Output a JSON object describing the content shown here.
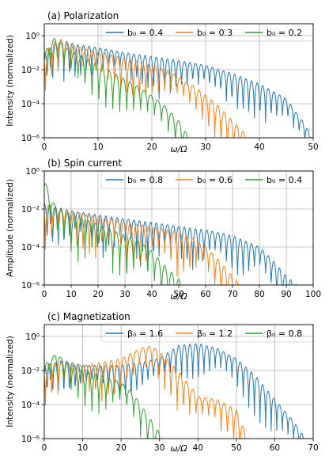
{
  "chart_data": [
    {
      "type": "line",
      "title": "(a) Polarization",
      "xlabel": "ω/Ω",
      "ylabel": "Intensity (normalized)",
      "xlim": [
        0,
        50
      ],
      "ylim": [
        1e-06,
        5
      ],
      "yscale": "log",
      "grid": true,
      "legend_position": "top-right",
      "xticks": [
        "0",
        "10",
        "20",
        "30",
        "40",
        "50"
      ],
      "yticks": [
        "10⁻⁶",
        "10⁻⁴",
        "10⁻²",
        "10⁰"
      ],
      "series": [
        {
          "name": "b₀ = 0.4",
          "color": "#1f77b4",
          "x": [
            0,
            3,
            6,
            10,
            15,
            20,
            25,
            30,
            35,
            40,
            45,
            48,
            50
          ],
          "y": [
            0.1,
            0.6,
            0.3,
            0.2,
            0.1,
            0.06,
            0.035,
            0.018,
            0.006,
            0.0015,
            0.0002,
            1e-05,
            1e-06
          ]
        },
        {
          "name": "b₀ = 0.3",
          "color": "#ff7f0e",
          "x": [
            0,
            2.5,
            5,
            8,
            12,
            16,
            20,
            24,
            28,
            32,
            36,
            38
          ],
          "y": [
            0.1,
            0.7,
            0.3,
            0.15,
            0.08,
            0.04,
            0.02,
            0.006,
            0.001,
            0.0001,
            5e-06,
            1e-06
          ]
        },
        {
          "name": "b₀ = 0.2",
          "color": "#2ca02c",
          "x": [
            0,
            2,
            4,
            7,
            10,
            13,
            16,
            19,
            22,
            25,
            27
          ],
          "y": [
            0.1,
            0.8,
            0.2,
            0.06,
            0.02,
            0.006,
            0.002,
            0.0005,
            0.0001,
            1e-05,
            1e-06
          ]
        }
      ]
    },
    {
      "type": "line",
      "title": "(b) Spin current",
      "xlabel": "ω/Ω",
      "ylabel": "Amplitude (normalized)",
      "xlim": [
        0,
        100
      ],
      "ylim": [
        1e-06,
        1
      ],
      "yscale": "log",
      "grid": true,
      "legend_position": "top-right",
      "xticks": [
        "0",
        "10",
        "20",
        "30",
        "40",
        "50",
        "60",
        "70",
        "80",
        "90",
        "100"
      ],
      "yticks": [
        "10⁻⁶",
        "10⁻⁴",
        "10⁻²",
        "10⁰"
      ],
      "series": [
        {
          "name": "b₀ = 0.8",
          "color": "#1f77b4",
          "x": [
            0,
            5,
            10,
            20,
            30,
            40,
            50,
            60,
            70,
            80,
            85,
            90,
            94
          ],
          "y": [
            0.02,
            0.012,
            0.008,
            0.005,
            0.003,
            0.002,
            0.0012,
            0.0008,
            0.0004,
            0.0001,
            2e-05,
            3e-06,
            1e-06
          ]
        },
        {
          "name": "b₀ = 0.6",
          "color": "#ff7f0e",
          "x": [
            0,
            5,
            10,
            20,
            30,
            40,
            50,
            55,
            60,
            65,
            70,
            73
          ],
          "y": [
            0.02,
            0.01,
            0.007,
            0.004,
            0.002,
            0.0012,
            0.0006,
            0.0003,
            0.0001,
            2e-05,
            3e-06,
            1e-06
          ]
        },
        {
          "name": "b₀ = 0.4",
          "color": "#2ca02c",
          "x": [
            0,
            2,
            5,
            10,
            15,
            20,
            25,
            30,
            35,
            40,
            45,
            50,
            52
          ],
          "y": [
            0.5,
            0.04,
            0.01,
            0.005,
            0.003,
            0.0015,
            0.0008,
            0.0004,
            0.0002,
            6e-05,
            1e-05,
            2e-06,
            1e-06
          ]
        }
      ]
    },
    {
      "type": "line",
      "title": "(c) Magnetization",
      "xlabel": "ω/Ω",
      "ylabel": "Intensity (normalized)",
      "xlim": [
        0,
        70
      ],
      "ylim": [
        1e-06,
        5
      ],
      "yscale": "log",
      "grid": true,
      "legend_position": "top-right",
      "xticks": [
        "0",
        "10",
        "20",
        "30",
        "40",
        "50",
        "60",
        "70"
      ],
      "yticks": [
        "10⁻⁶",
        "10⁻⁴",
        "10⁻²",
        "10⁰"
      ],
      "series": [
        {
          "name": "β₀ = 1.6",
          "color": "#1f77b4",
          "x": [
            0,
            5,
            10,
            20,
            30,
            35,
            40,
            45,
            50,
            55,
            60,
            65,
            68
          ],
          "y": [
            0.02,
            0.04,
            0.02,
            0.02,
            0.05,
            0.3,
            0.4,
            0.2,
            0.05,
            0.005,
            0.0002,
            1e-05,
            1e-06
          ]
        },
        {
          "name": "β₀ = 1.2",
          "color": "#ff7f0e",
          "x": [
            0,
            5,
            10,
            15,
            20,
            25,
            28,
            32,
            36,
            40,
            45,
            50,
            53
          ],
          "y": [
            0.02,
            0.03,
            0.02,
            0.03,
            0.05,
            0.2,
            0.3,
            0.05,
            0.005,
            0.0003,
            0.0002,
            5e-05,
            1e-06
          ]
        },
        {
          "name": "β₀ = 0.8",
          "color": "#2ca02c",
          "x": [
            0,
            3,
            6,
            10,
            15,
            20,
            23,
            26,
            29,
            31
          ],
          "y": [
            0.02,
            0.1,
            0.03,
            0.01,
            0.005,
            0.002,
            0.0005,
            5e-05,
            5e-06,
            1e-06
          ]
        }
      ]
    }
  ]
}
